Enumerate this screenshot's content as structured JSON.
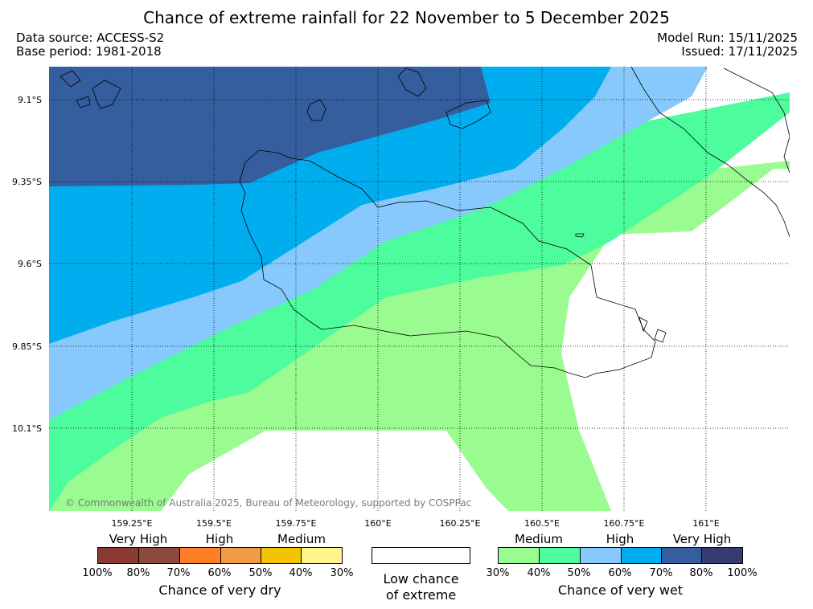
{
  "title": "Chance of extreme rainfall for 22 November to 5 December 2025",
  "meta": {
    "data_source": "Data source: ACCESS-S2",
    "base_period": "Base period: 1981-2018",
    "model_run": "Model Run: 15/11/2025",
    "issued": "Issued: 17/11/2025"
  },
  "map": {
    "lat_labels": [
      "9.1°S",
      "9.35°S",
      "9.6°S",
      "9.85°S",
      "10.1°S"
    ],
    "lon_labels": [
      "159.25°E",
      "159.5°E",
      "159.75°E",
      "160°E",
      "160.25°E",
      "160.5°E",
      "160.75°E",
      "161°E"
    ],
    "copyright": "© Commonwealth of Australia 2025, Bureau of Meteorology, supported by COSPPac",
    "colors": {
      "very_high_wet_80_100": "#355e9e",
      "wet_70_80": "#00aeef",
      "wet_60_70": "#87c9fc",
      "wet_50_60": "#4dfc9d",
      "wet_40_50": "#9afb91",
      "low": "#ffffff"
    }
  },
  "legend": {
    "dry": {
      "headers": [
        "Very High",
        "High",
        "Medium"
      ],
      "ticks": [
        "100%",
        "80%",
        "70%",
        "60%",
        "50%",
        "40%",
        "30%"
      ],
      "colors": [
        "#8b3a32",
        "#8b4a3c",
        "#ff7f27",
        "#f09b48",
        "#f2c500",
        "#fff58a"
      ],
      "title": "Chance of very dry"
    },
    "low": {
      "line1": "Low chance",
      "line2": "of extreme"
    },
    "wet": {
      "headers": [
        "Medium",
        "High",
        "Very High"
      ],
      "ticks": [
        "30%",
        "40%",
        "50%",
        "60%",
        "70%",
        "80%",
        "100%"
      ],
      "colors": [
        "#9afb91",
        "#4dfc9d",
        "#87c9fc",
        "#00aeef",
        "#355e9e",
        "#383a72"
      ],
      "title": "Chance of very wet"
    }
  }
}
